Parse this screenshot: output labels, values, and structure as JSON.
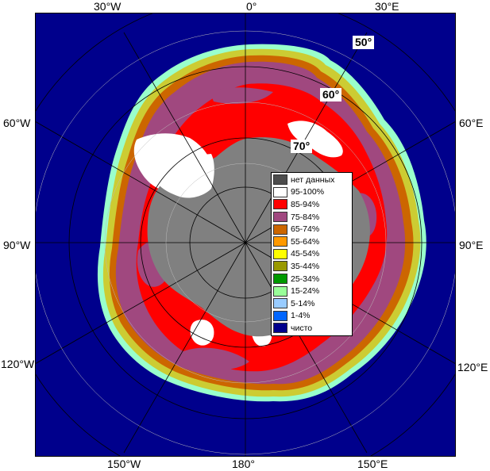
{
  "map": {
    "longitude_labels": {
      "w30": "30°W",
      "zero": "0°",
      "e30": "30°E",
      "w60": "60°W",
      "e60": "60°E",
      "w90": "90°W",
      "e90": "90°E",
      "w120": "120°W",
      "e120": "120°E",
      "w150": "150°W",
      "lon180": "180°",
      "e150": "150°E"
    },
    "latitude_labels": {
      "lat50": "50°",
      "lat60": "60°",
      "lat70": "70°"
    },
    "colors": {
      "ocean": "#00008c",
      "land": "#808080",
      "nodata": "#404040",
      "sea_ice_high": "#ff0000",
      "sea_ice_mid": "#a0487f"
    }
  },
  "legend": {
    "items": [
      {
        "label": "нет данных",
        "color": "#4d4d4d"
      },
      {
        "label": "95-100%",
        "color": "#ffffff"
      },
      {
        "label": "85-94%",
        "color": "#ff0000"
      },
      {
        "label": "75-84%",
        "color": "#a0487f"
      },
      {
        "label": "65-74%",
        "color": "#cc6600"
      },
      {
        "label": "55-64%",
        "color": "#ff9900"
      },
      {
        "label": "45-54%",
        "color": "#ffff00"
      },
      {
        "label": "35-44%",
        "color": "#999900"
      },
      {
        "label": "25-34%",
        "color": "#009900"
      },
      {
        "label": "15-24%",
        "color": "#99ff99"
      },
      {
        "label": "5-14%",
        "color": "#99ccff"
      },
      {
        "label": "1-4%",
        "color": "#0066ff"
      },
      {
        "label": "чисто",
        "color": "#00008c"
      }
    ]
  }
}
